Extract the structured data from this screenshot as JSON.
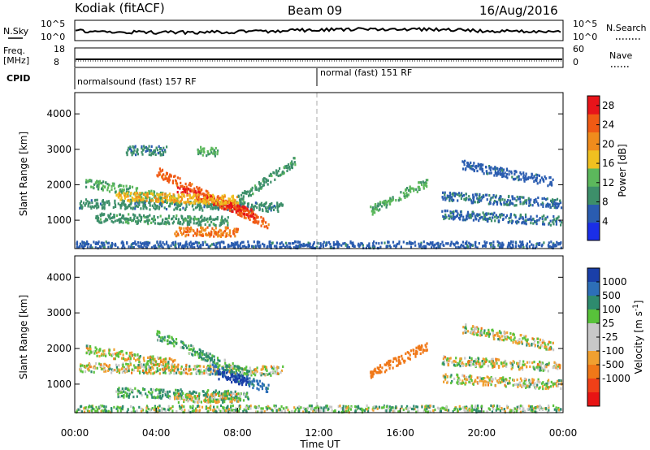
{
  "header": {
    "radar_title": "Kodiak (fitACF)",
    "beam": "Beam 09",
    "date": "16/Aug/2016"
  },
  "top_panels": {
    "nsky_label": "N.Sky",
    "nsearch_label": "N.Search",
    "nsky_tick_top": "10^5",
    "nsky_tick_bottom": "10^0",
    "nsearch_tick_top": "10^5",
    "nsearch_tick_bottom": "10^0",
    "freq_label_line1": "Freq.",
    "freq_label_line2": "[MHz]",
    "freq_tick_top": "18",
    "freq_tick_bottom": "8",
    "nave_label": "Nave",
    "nave_tick_top": "60",
    "nave_tick_bottom": "0",
    "cpid_label": "CPID",
    "cpid_segment_1": "normalsound (fast) 157 RF",
    "cpid_segment_2": "normal (fast) 151 RF"
  },
  "colors": {
    "power_scale": [
      "#1a2ee8",
      "#2a5cb0",
      "#3d8f6a",
      "#5cb85c",
      "#f0c020",
      "#f08c1c",
      "#f05a14",
      "#e8141a"
    ],
    "velocity_scale": [
      "#1a3fa8",
      "#2d6fb8",
      "#2e8b6e",
      "#58c23a",
      "#c8c8c8",
      "#c8c8c8",
      "#f0a030",
      "#f07818",
      "#f04018",
      "#e81414"
    ]
  },
  "chart_data": [
    {
      "type": "heatmap",
      "ylabel": "Slant Range [km]",
      "xlabel": "",
      "y_ticks": [
        "1000",
        "2000",
        "3000",
        "4000"
      ],
      "x_ticks": [],
      "xlim": [
        0,
        24
      ],
      "ylim": [
        200,
        4600
      ],
      "colorbar_label": "Power [dB]",
      "colorbar_ticks": [
        "4",
        "8",
        "12",
        "16",
        "20",
        "24",
        "28"
      ],
      "colorbar_range": [
        0,
        30
      ],
      "bands": [
        {
          "t0": 0.2,
          "t1": 10.2,
          "r0": 1500,
          "r1": 1400,
          "value": 9
        },
        {
          "t0": 0.5,
          "t1": 5.0,
          "r0": 2100,
          "r1": 1600,
          "value": 12
        },
        {
          "t0": 4.0,
          "t1": 9.5,
          "r0": 2400,
          "r1": 900,
          "value": 24
        },
        {
          "t0": 5.0,
          "t1": 8.8,
          "r0": 1900,
          "r1": 1200,
          "value": 27
        },
        {
          "t0": 2.0,
          "t1": 8.0,
          "r0": 1700,
          "r1": 1600,
          "value": 18
        },
        {
          "t0": 4.8,
          "t1": 8.0,
          "r0": 700,
          "r1": 700,
          "value": 22
        },
        {
          "t0": 1.0,
          "t1": 7.5,
          "r0": 1100,
          "r1": 1000,
          "value": 10
        },
        {
          "t0": 8.0,
          "t1": 10.8,
          "r0": 1600,
          "r1": 2700,
          "value": 10
        },
        {
          "t0": 2.5,
          "t1": 4.5,
          "r0": 3000,
          "r1": 3000,
          "value": 8
        },
        {
          "t0": 6.0,
          "t1": 7.0,
          "r0": 3000,
          "r1": 2950,
          "value": 12
        },
        {
          "t0": 14.5,
          "t1": 17.3,
          "r0": 1300,
          "r1": 2100,
          "value": 12
        },
        {
          "t0": 18.0,
          "t1": 24.0,
          "r0": 1700,
          "r1": 1500,
          "value": 7
        },
        {
          "t0": 18.0,
          "t1": 24.0,
          "r0": 1200,
          "r1": 1000,
          "value": 7
        },
        {
          "t0": 19.0,
          "t1": 23.5,
          "r0": 2600,
          "r1": 2100,
          "value": 6
        },
        {
          "t0": 0.0,
          "t1": 24.0,
          "r0": 300,
          "r1": 300,
          "value": 6
        }
      ]
    },
    {
      "type": "heatmap",
      "ylabel": "Slant Range [km]",
      "xlabel": "Time UT",
      "y_ticks": [
        "1000",
        "2000",
        "3000",
        "4000"
      ],
      "x_ticks": [
        "00:00",
        "04:00",
        "08:00",
        "12:00",
        "16:00",
        "20:00",
        "00:00"
      ],
      "xlim": [
        0,
        24
      ],
      "ylim": [
        200,
        4600
      ],
      "colorbar_label": "Velocity [m s^-1]",
      "colorbar_ticks": [
        "1000",
        "500",
        "100",
        "25",
        "-25",
        "-100",
        "-500",
        "-1000"
      ],
      "colorbar_range": [
        -1000,
        1000
      ],
      "bands": [
        {
          "t0": 0.2,
          "t1": 10.2,
          "r0": 1500,
          "r1": 1400,
          "value": 0
        },
        {
          "t0": 0.5,
          "t1": 5.0,
          "r0": 2000,
          "r1": 1600,
          "value": 0
        },
        {
          "t0": 4.0,
          "t1": 8.5,
          "r0": 2400,
          "r1": 1300,
          "value": 120
        },
        {
          "t0": 6.5,
          "t1": 9.5,
          "r0": 1500,
          "r1": 900,
          "value": 300
        },
        {
          "t0": 7.0,
          "t1": 8.5,
          "r0": 1300,
          "r1": 1100,
          "value": 700
        },
        {
          "t0": 2.0,
          "t1": 8.5,
          "r0": 800,
          "r1": 700,
          "value": 110
        },
        {
          "t0": 4.8,
          "t1": 8.0,
          "r0": 650,
          "r1": 650,
          "value": 0
        },
        {
          "t0": 14.5,
          "t1": 17.3,
          "r0": 1300,
          "r1": 2100,
          "value": -300
        },
        {
          "t0": 18.0,
          "t1": 24.0,
          "r0": 1700,
          "r1": 1500,
          "value": 0
        },
        {
          "t0": 18.0,
          "t1": 24.0,
          "r0": 1200,
          "r1": 1000,
          "value": 0
        },
        {
          "t0": 19.0,
          "t1": 23.5,
          "r0": 2600,
          "r1": 2100,
          "value": 0
        },
        {
          "t0": 0.0,
          "t1": 24.0,
          "r0": 300,
          "r1": 300,
          "value": 60
        }
      ]
    }
  ]
}
